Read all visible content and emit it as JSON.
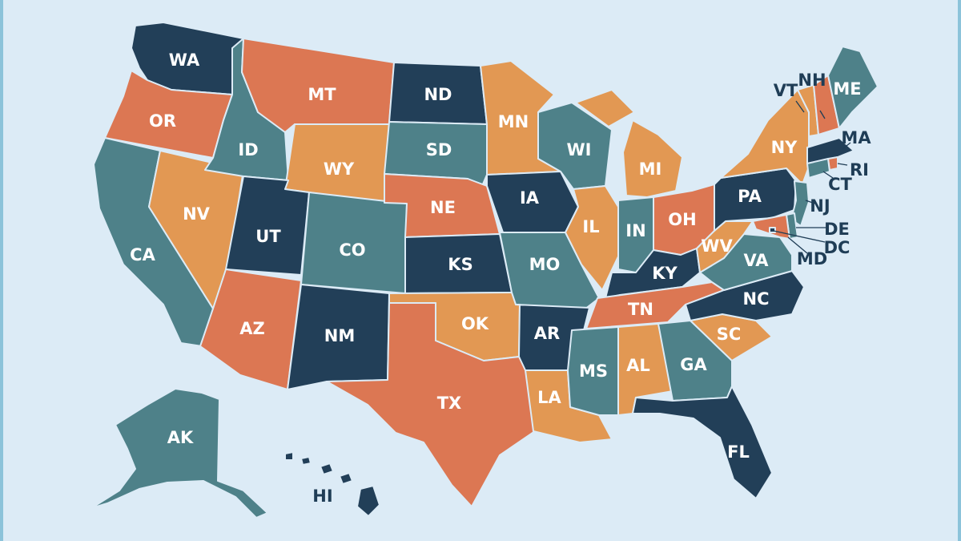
{
  "palette": {
    "background": "#dcebf6",
    "navy": "#223f58",
    "teal": "#4e8189",
    "orange": "#dc7753",
    "sand": "#e29853",
    "label_light": "#ffffff",
    "label_dark": "#1f3d56"
  },
  "states": [
    {
      "abbr": "WA",
      "color": "navy"
    },
    {
      "abbr": "OR",
      "color": "orange"
    },
    {
      "abbr": "CA",
      "color": "teal"
    },
    {
      "abbr": "NV",
      "color": "sand"
    },
    {
      "abbr": "ID",
      "color": "teal"
    },
    {
      "abbr": "MT",
      "color": "orange"
    },
    {
      "abbr": "WY",
      "color": "sand"
    },
    {
      "abbr": "UT",
      "color": "navy"
    },
    {
      "abbr": "CO",
      "color": "teal"
    },
    {
      "abbr": "AZ",
      "color": "orange"
    },
    {
      "abbr": "NM",
      "color": "navy"
    },
    {
      "abbr": "ND",
      "color": "navy"
    },
    {
      "abbr": "SD",
      "color": "teal"
    },
    {
      "abbr": "NE",
      "color": "orange"
    },
    {
      "abbr": "KS",
      "color": "navy"
    },
    {
      "abbr": "OK",
      "color": "sand"
    },
    {
      "abbr": "TX",
      "color": "orange"
    },
    {
      "abbr": "MN",
      "color": "sand"
    },
    {
      "abbr": "IA",
      "color": "navy"
    },
    {
      "abbr": "MO",
      "color": "teal"
    },
    {
      "abbr": "AR",
      "color": "navy"
    },
    {
      "abbr": "LA",
      "color": "sand"
    },
    {
      "abbr": "WI",
      "color": "teal"
    },
    {
      "abbr": "IL",
      "color": "sand"
    },
    {
      "abbr": "MI",
      "color": "sand"
    },
    {
      "abbr": "IN",
      "color": "teal"
    },
    {
      "abbr": "OH",
      "color": "orange"
    },
    {
      "abbr": "KY",
      "color": "navy"
    },
    {
      "abbr": "TN",
      "color": "orange"
    },
    {
      "abbr": "MS",
      "color": "teal"
    },
    {
      "abbr": "AL",
      "color": "sand"
    },
    {
      "abbr": "GA",
      "color": "teal"
    },
    {
      "abbr": "FL",
      "color": "navy"
    },
    {
      "abbr": "SC",
      "color": "sand"
    },
    {
      "abbr": "NC",
      "color": "navy"
    },
    {
      "abbr": "VA",
      "color": "teal"
    },
    {
      "abbr": "WV",
      "color": "sand"
    },
    {
      "abbr": "PA",
      "color": "navy"
    },
    {
      "abbr": "NY",
      "color": "sand"
    },
    {
      "abbr": "VT",
      "color": "sand"
    },
    {
      "abbr": "NH",
      "color": "orange"
    },
    {
      "abbr": "ME",
      "color": "teal"
    },
    {
      "abbr": "MA",
      "color": "navy"
    },
    {
      "abbr": "RI",
      "color": "orange"
    },
    {
      "abbr": "CT",
      "color": "teal"
    },
    {
      "abbr": "NJ",
      "color": "teal"
    },
    {
      "abbr": "DE",
      "color": "teal"
    },
    {
      "abbr": "MD",
      "color": "orange"
    },
    {
      "abbr": "DC",
      "color": "navy"
    },
    {
      "abbr": "AK",
      "color": "teal"
    },
    {
      "abbr": "HI",
      "color": "navy"
    }
  ]
}
